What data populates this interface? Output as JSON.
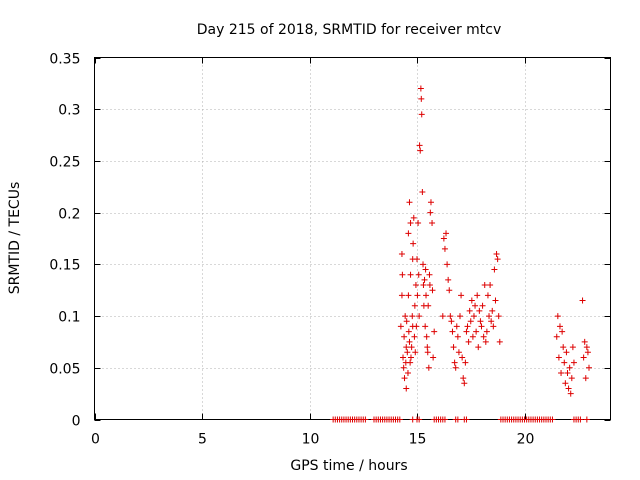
{
  "chart_data": {
    "type": "scatter",
    "title": "Day 215 of 2018, SRMTID for receiver mtcv",
    "xlabel": "GPS time / hours",
    "ylabel": "SRMTID / TECUs",
    "xlim": [
      0,
      24
    ],
    "ylim": [
      0,
      0.35
    ],
    "xticks": [
      0,
      5,
      10,
      15,
      20
    ],
    "xtick_labels": [
      "0",
      "5",
      "10",
      "15",
      "20"
    ],
    "yticks": [
      0,
      0.05,
      0.1,
      0.15,
      0.2,
      0.25,
      0.3,
      0.35
    ],
    "ytick_labels": [
      "0",
      "0.05",
      "0.1",
      "0.15",
      "0.2",
      "0.25",
      "0.3",
      "0.35"
    ],
    "grid": true,
    "marker": "+",
    "color": "#dd0000",
    "series": [
      {
        "name": "SRMTID",
        "points": [
          [
            11.1,
            0
          ],
          [
            11.2,
            0
          ],
          [
            11.3,
            0
          ],
          [
            11.4,
            0
          ],
          [
            11.5,
            0
          ],
          [
            11.6,
            0
          ],
          [
            11.7,
            0
          ],
          [
            11.8,
            0
          ],
          [
            11.9,
            0
          ],
          [
            12.0,
            0
          ],
          [
            12.1,
            0
          ],
          [
            12.2,
            0
          ],
          [
            12.3,
            0
          ],
          [
            12.4,
            0
          ],
          [
            12.5,
            0
          ],
          [
            12.6,
            0
          ],
          [
            13.0,
            0
          ],
          [
            13.1,
            0
          ],
          [
            13.2,
            0
          ],
          [
            13.3,
            0
          ],
          [
            13.4,
            0
          ],
          [
            13.5,
            0
          ],
          [
            13.6,
            0
          ],
          [
            13.7,
            0
          ],
          [
            13.8,
            0
          ],
          [
            13.9,
            0
          ],
          [
            14.0,
            0
          ],
          [
            14.1,
            0
          ],
          [
            14.2,
            0
          ],
          [
            14.8,
            0
          ],
          [
            15.0,
            0
          ],
          [
            15.1,
            0
          ],
          [
            15.8,
            0
          ],
          [
            15.9,
            0
          ],
          [
            16.0,
            0
          ],
          [
            16.1,
            0
          ],
          [
            16.2,
            0
          ],
          [
            16.3,
            0
          ],
          [
            16.8,
            0
          ],
          [
            16.9,
            0
          ],
          [
            17.2,
            0
          ],
          [
            17.3,
            0
          ],
          [
            18.9,
            0
          ],
          [
            19.0,
            0
          ],
          [
            19.1,
            0
          ],
          [
            19.2,
            0
          ],
          [
            19.3,
            0
          ],
          [
            19.4,
            0
          ],
          [
            19.5,
            0
          ],
          [
            19.6,
            0
          ],
          [
            19.7,
            0
          ],
          [
            19.8,
            0
          ],
          [
            19.9,
            0
          ],
          [
            20.0,
            0
          ],
          [
            20.1,
            0
          ],
          [
            20.2,
            0
          ],
          [
            20.3,
            0
          ],
          [
            20.4,
            0
          ],
          [
            20.5,
            0
          ],
          [
            20.6,
            0
          ],
          [
            20.7,
            0
          ],
          [
            20.8,
            0
          ],
          [
            20.9,
            0
          ],
          [
            21.0,
            0
          ],
          [
            21.1,
            0
          ],
          [
            21.2,
            0
          ],
          [
            21.3,
            0
          ],
          [
            22.3,
            0
          ],
          [
            22.4,
            0
          ],
          [
            22.5,
            0
          ],
          [
            22.6,
            0
          ],
          [
            22.9,
            0
          ],
          [
            14.25,
            0.09
          ],
          [
            14.3,
            0.12
          ],
          [
            14.3,
            0.16
          ],
          [
            14.32,
            0.14
          ],
          [
            14.35,
            0.06
          ],
          [
            14.38,
            0.05
          ],
          [
            14.4,
            0.08
          ],
          [
            14.42,
            0.04
          ],
          [
            14.45,
            0.1
          ],
          [
            14.48,
            0.055
          ],
          [
            14.5,
            0.07
          ],
          [
            14.5,
            0.03
          ],
          [
            14.52,
            0.095
          ],
          [
            14.55,
            0.065
          ],
          [
            14.58,
            0.045
          ],
          [
            14.6,
            0.18
          ],
          [
            14.6,
            0.12
          ],
          [
            14.62,
            0.085
          ],
          [
            14.65,
            0.21
          ],
          [
            14.65,
            0.075
          ],
          [
            14.68,
            0.055
          ],
          [
            14.7,
            0.19
          ],
          [
            14.7,
            0.14
          ],
          [
            14.72,
            0.06
          ],
          [
            14.75,
            0.07
          ],
          [
            14.78,
            0.1
          ],
          [
            14.8,
            0.155
          ],
          [
            14.8,
            0.09
          ],
          [
            14.82,
            0.17
          ],
          [
            14.85,
            0.195
          ],
          [
            14.88,
            0.08
          ],
          [
            14.9,
            0.11
          ],
          [
            14.92,
            0.065
          ],
          [
            14.95,
            0.13
          ],
          [
            14.97,
            0.09
          ],
          [
            15.0,
            0.155
          ],
          [
            15.02,
            0.12
          ],
          [
            15.05,
            0.19
          ],
          [
            15.08,
            0.14
          ],
          [
            15.1,
            0.1
          ],
          [
            15.12,
            0.265
          ],
          [
            15.15,
            0.26
          ],
          [
            15.18,
            0.32
          ],
          [
            15.2,
            0.31
          ],
          [
            15.22,
            0.295
          ],
          [
            15.25,
            0.22
          ],
          [
            15.28,
            0.15
          ],
          [
            15.3,
            0.13
          ],
          [
            15.32,
            0.11
          ],
          [
            15.35,
            0.135
          ],
          [
            15.38,
            0.09
          ],
          [
            15.4,
            0.145
          ],
          [
            15.42,
            0.12
          ],
          [
            15.45,
            0.08
          ],
          [
            15.48,
            0.07
          ],
          [
            15.5,
            0.065
          ],
          [
            15.52,
            0.11
          ],
          [
            15.55,
            0.05
          ],
          [
            15.58,
            0.14
          ],
          [
            15.6,
            0.13
          ],
          [
            15.62,
            0.2
          ],
          [
            15.65,
            0.21
          ],
          [
            15.7,
            0.19
          ],
          [
            15.72,
            0.125
          ],
          [
            15.75,
            0.06
          ],
          [
            15.8,
            0.085
          ],
          [
            16.2,
            0.1
          ],
          [
            16.25,
            0.175
          ],
          [
            16.3,
            0.165
          ],
          [
            16.35,
            0.18
          ],
          [
            16.4,
            0.15
          ],
          [
            16.45,
            0.135
          ],
          [
            16.5,
            0.125
          ],
          [
            16.55,
            0.1
          ],
          [
            16.6,
            0.095
          ],
          [
            16.65,
            0.085
          ],
          [
            16.7,
            0.07
          ],
          [
            16.75,
            0.055
          ],
          [
            16.8,
            0.05
          ],
          [
            16.85,
            0.09
          ],
          [
            16.9,
            0.08
          ],
          [
            16.95,
            0.065
          ],
          [
            17.0,
            0.1
          ],
          [
            17.05,
            0.12
          ],
          [
            17.1,
            0.06
          ],
          [
            17.15,
            0.04
          ],
          [
            17.2,
            0.035
          ],
          [
            17.25,
            0.055
          ],
          [
            17.3,
            0.085
          ],
          [
            17.35,
            0.09
          ],
          [
            17.4,
            0.075
          ],
          [
            17.45,
            0.105
          ],
          [
            17.5,
            0.095
          ],
          [
            17.55,
            0.115
          ],
          [
            17.6,
            0.08
          ],
          [
            17.65,
            0.1
          ],
          [
            17.7,
            0.11
          ],
          [
            17.75,
            0.085
          ],
          [
            17.8,
            0.12
          ],
          [
            17.85,
            0.07
          ],
          [
            17.9,
            0.105
          ],
          [
            17.95,
            0.095
          ],
          [
            18.0,
            0.09
          ],
          [
            18.05,
            0.11
          ],
          [
            18.1,
            0.08
          ],
          [
            18.15,
            0.13
          ],
          [
            18.2,
            0.075
          ],
          [
            18.25,
            0.085
          ],
          [
            18.3,
            0.12
          ],
          [
            18.35,
            0.1
          ],
          [
            18.4,
            0.13
          ],
          [
            18.45,
            0.095
          ],
          [
            18.5,
            0.105
          ],
          [
            18.55,
            0.09
          ],
          [
            18.6,
            0.145
          ],
          [
            18.65,
            0.115
          ],
          [
            18.7,
            0.16
          ],
          [
            18.75,
            0.155
          ],
          [
            18.8,
            0.1
          ],
          [
            18.85,
            0.075
          ],
          [
            21.5,
            0.08
          ],
          [
            21.55,
            0.1
          ],
          [
            21.6,
            0.06
          ],
          [
            21.65,
            0.09
          ],
          [
            21.7,
            0.045
          ],
          [
            21.75,
            0.085
          ],
          [
            21.8,
            0.07
          ],
          [
            21.85,
            0.055
          ],
          [
            21.9,
            0.035
          ],
          [
            21.95,
            0.065
          ],
          [
            22.0,
            0.045
          ],
          [
            22.05,
            0.03
          ],
          [
            22.1,
            0.05
          ],
          [
            22.15,
            0.025
          ],
          [
            22.2,
            0.04
          ],
          [
            22.25,
            0.07
          ],
          [
            22.3,
            0.055
          ],
          [
            22.7,
            0.115
          ],
          [
            22.75,
            0.06
          ],
          [
            22.8,
            0.075
          ],
          [
            22.85,
            0.04
          ],
          [
            22.9,
            0.07
          ],
          [
            22.95,
            0.065
          ],
          [
            23.0,
            0.05
          ]
        ]
      }
    ]
  }
}
